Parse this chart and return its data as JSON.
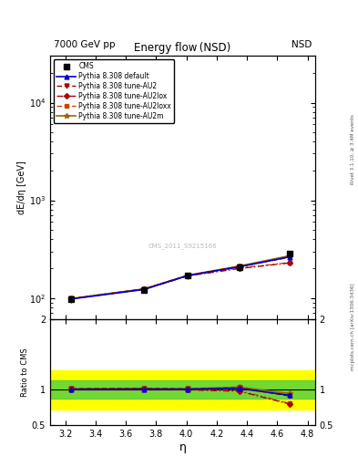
{
  "title": "Energy flow (NSD)",
  "top_left_label": "7000 GeV pp",
  "top_right_label": "NSD",
  "right_label_top": "Rivet 3.1.10, ≥ 3.4M events",
  "right_label_bottom": "mcplots.cern.ch [arXiv:1306.3436]",
  "watermark": "CMS_2011_S9215166",
  "ylabel_main": "dE/dη [GeV]",
  "ylabel_ratio": "Ratio to CMS",
  "xlabel": "η",
  "eta_values": [
    3.24,
    3.72,
    4.01,
    4.35,
    4.68
  ],
  "cms_data": [
    97.0,
    121.0,
    168.0,
    204.0,
    285.0
  ],
  "cms_errors": [
    7.0,
    9.0,
    12.0,
    15.0,
    21.0
  ],
  "pythia_default": [
    97.5,
    122.0,
    169.5,
    208.0,
    263.0
  ],
  "pythia_AU2": [
    98.5,
    123.5,
    170.0,
    210.0,
    260.0
  ],
  "pythia_AU2lox": [
    98.0,
    122.5,
    168.0,
    200.0,
    228.0
  ],
  "pythia_AU2loxx": [
    98.5,
    123.0,
    169.0,
    202.0,
    230.0
  ],
  "pythia_AU2m": [
    98.5,
    123.5,
    170.5,
    212.0,
    270.0
  ],
  "ratio_default": [
    1.005,
    1.008,
    1.009,
    1.02,
    0.923
  ],
  "ratio_AU2": [
    1.015,
    1.021,
    1.012,
    1.03,
    0.912
  ],
  "ratio_AU2lox": [
    1.01,
    1.012,
    1.0,
    0.98,
    0.8
  ],
  "ratio_AU2loxx": [
    1.015,
    1.017,
    1.006,
    0.99,
    0.807
  ],
  "ratio_AU2m": [
    1.015,
    1.021,
    1.015,
    1.039,
    0.947
  ],
  "green_band_lo": 0.87,
  "green_band_hi": 1.13,
  "yellow_band_lo": 0.72,
  "yellow_band_hi": 1.28,
  "ylim_main_log": [
    60,
    30000
  ],
  "ylim_ratio": [
    0.5,
    2.0
  ],
  "xlim": [
    3.1,
    4.85
  ],
  "color_default": "#0000cc",
  "color_AU2": "#aa0000",
  "color_AU2lox": "#aa0000",
  "color_AU2loxx": "#cc4400",
  "color_AU2m": "#996600",
  "background": "#ffffff"
}
